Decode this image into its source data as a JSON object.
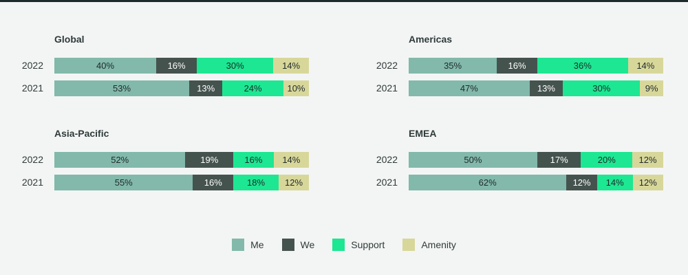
{
  "colors": {
    "Me": "#82b9ab",
    "We": "#45534f",
    "Support": "#1de792",
    "Amenity": "#d8d79a"
  },
  "chart_data": [
    {
      "type": "bar",
      "orientation": "horizontal",
      "stacked": true,
      "title": "Global",
      "categories": [
        "2022",
        "2021"
      ],
      "series": [
        {
          "name": "Me",
          "values": [
            40,
            53
          ]
        },
        {
          "name": "We",
          "values": [
            16,
            13
          ]
        },
        {
          "name": "Support",
          "values": [
            30,
            24
          ]
        },
        {
          "name": "Amenity",
          "values": [
            14,
            10
          ]
        }
      ],
      "value_suffix": "%"
    },
    {
      "type": "bar",
      "orientation": "horizontal",
      "stacked": true,
      "title": "Americas",
      "categories": [
        "2022",
        "2021"
      ],
      "series": [
        {
          "name": "Me",
          "values": [
            35,
            47
          ]
        },
        {
          "name": "We",
          "values": [
            16,
            13
          ]
        },
        {
          "name": "Support",
          "values": [
            36,
            30
          ]
        },
        {
          "name": "Amenity",
          "values": [
            14,
            9
          ]
        }
      ],
      "value_suffix": "%"
    },
    {
      "type": "bar",
      "orientation": "horizontal",
      "stacked": true,
      "title": "Asia-Pacific",
      "categories": [
        "2022",
        "2021"
      ],
      "series": [
        {
          "name": "Me",
          "values": [
            52,
            55
          ]
        },
        {
          "name": "We",
          "values": [
            19,
            16
          ]
        },
        {
          "name": "Support",
          "values": [
            16,
            18
          ]
        },
        {
          "name": "Amenity",
          "values": [
            14,
            12
          ]
        }
      ],
      "value_suffix": "%"
    },
    {
      "type": "bar",
      "orientation": "horizontal",
      "stacked": true,
      "title": "EMEA",
      "categories": [
        "2022",
        "2021"
      ],
      "series": [
        {
          "name": "Me",
          "values": [
            50,
            62
          ]
        },
        {
          "name": "We",
          "values": [
            17,
            12
          ]
        },
        {
          "name": "Support",
          "values": [
            20,
            14
          ]
        },
        {
          "name": "Amenity",
          "values": [
            12,
            12
          ]
        }
      ],
      "value_suffix": "%"
    }
  ],
  "legend": {
    "position": "bottom-center",
    "items": [
      "Me",
      "We",
      "Support",
      "Amenity"
    ]
  }
}
